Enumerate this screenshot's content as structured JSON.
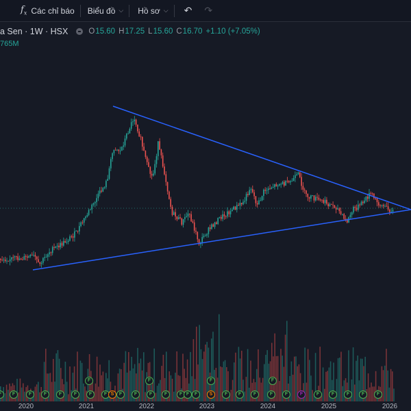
{
  "toolbar": {
    "indicators_label": "Các chỉ báo",
    "chart_label": "Biểu đồ",
    "profile_label": "Hồ sơ"
  },
  "legend": {
    "symbol": "a Sen · 1W · HSX",
    "open_key": "O",
    "open": "15.60",
    "high_key": "H",
    "high": "17.25",
    "low_key": "L",
    "low": "15.60",
    "close_key": "C",
    "close": "16.70",
    "change": "+1.10 (+7.05%)",
    "volume": "765M"
  },
  "x_axis": [
    "2020",
    "2021",
    "2022",
    "2023",
    "2024",
    "2025",
    "2026"
  ],
  "colors": {
    "up": "#26a69a",
    "down": "#ef5350",
    "trendline": "#2962ff",
    "bg": "#161a25"
  },
  "badges": [
    {
      "t": "F",
      "k": "f"
    },
    {
      "t": "F",
      "k": "f"
    },
    {
      "t": "F",
      "k": "f"
    },
    {
      "t": "F",
      "k": "f"
    },
    {
      "t": "F",
      "k": "f"
    },
    {
      "t": "F",
      "k": "f"
    },
    {
      "t": "F",
      "k": "f"
    },
    {
      "t": "F",
      "k": "f"
    },
    {
      "t": "S",
      "k": "s"
    },
    {
      "t": "F",
      "k": "f"
    },
    {
      "t": "F",
      "k": "f"
    },
    {
      "t": "F",
      "k": "f"
    },
    {
      "t": "F",
      "k": "f"
    },
    {
      "t": "F",
      "k": "f"
    },
    {
      "t": "F",
      "k": "f"
    },
    {
      "t": "F",
      "k": "f"
    },
    {
      "t": "S",
      "k": "s"
    },
    {
      "t": "F",
      "k": "f"
    },
    {
      "t": "F",
      "k": "f"
    },
    {
      "t": "F",
      "k": "f"
    },
    {
      "t": "F",
      "k": "f"
    },
    {
      "t": "F",
      "k": "f"
    },
    {
      "t": "F",
      "k": "f"
    },
    {
      "t": "F",
      "k": "f"
    },
    {
      "t": "F",
      "k": "f"
    },
    {
      "t": "F",
      "k": "f"
    },
    {
      "t": "F",
      "k": "f"
    },
    {
      "t": "F",
      "k": "f"
    },
    {
      "t": "F",
      "k": "f"
    },
    {
      "t": "F",
      "k": "f"
    },
    {
      "t": "F",
      "k": "f"
    },
    {
      "t": "F",
      "k": "f"
    },
    {
      "t": "F",
      "k": "f"
    },
    {
      "t": "F",
      "k": "f"
    },
    {
      "t": "F",
      "k": "f"
    },
    {
      "t": "F",
      "k": "f"
    },
    {
      "t": "F",
      "k": "f"
    },
    {
      "t": "F",
      "k": "f"
    },
    {
      "t": "F",
      "k": "f"
    },
    {
      "t": "F",
      "k": "f"
    },
    {
      "t": "F",
      "k": "f"
    },
    {
      "t": "F",
      "k": "f"
    },
    {
      "t": "F",
      "k": "f"
    },
    {
      "t": "F",
      "k": "f"
    }
  ]
}
